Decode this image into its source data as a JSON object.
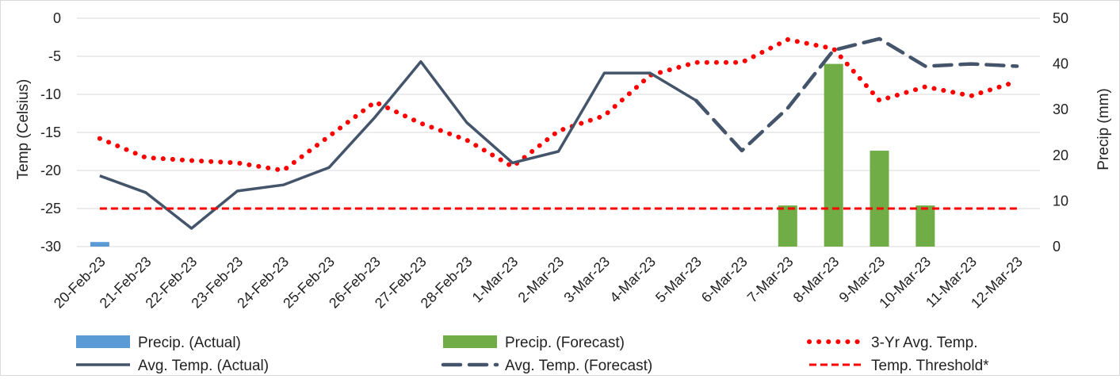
{
  "chart_data": {
    "type": "bar",
    "categories": [
      "20-Feb-23",
      "21-Feb-23",
      "22-Feb-23",
      "23-Feb-23",
      "24-Feb-23",
      "25-Feb-23",
      "26-Feb-23",
      "27-Feb-23",
      "28-Feb-23",
      "1-Mar-23",
      "2-Mar-23",
      "3-Mar-23",
      "4-Mar-23",
      "5-Mar-23",
      "6-Mar-23",
      "7-Mar-23",
      "8-Mar-23",
      "9-Mar-23",
      "10-Mar-23",
      "11-Mar-23",
      "12-Mar-23"
    ],
    "ylabel": "Temp  (Celsius)",
    "y2label": "Precip (mm)",
    "ylim": [
      -30,
      0
    ],
    "y2lim": [
      0,
      50
    ],
    "yticks": [
      "0",
      "-5",
      "-10",
      "-15",
      "-20",
      "-25",
      "-30"
    ],
    "y2ticks": [
      "50",
      "40",
      "30",
      "20",
      "10",
      "0"
    ],
    "grid": true,
    "legend_position": "bottom",
    "series": [
      {
        "name": "Precip. (Actual)",
        "kind": "bar",
        "axis": "right",
        "color": "#5b9bd5",
        "values": [
          1,
          null,
          null,
          null,
          null,
          null,
          null,
          null,
          null,
          null,
          null,
          null,
          null,
          null,
          null,
          null,
          null,
          null,
          null,
          null,
          null
        ]
      },
      {
        "name": "Precip. (Forecast)",
        "kind": "bar",
        "axis": "right",
        "color": "#70ad47",
        "values": [
          null,
          null,
          null,
          null,
          null,
          null,
          null,
          null,
          null,
          null,
          null,
          null,
          null,
          null,
          null,
          9,
          40,
          21,
          9,
          null,
          null
        ]
      },
      {
        "name": "3-Yr Avg. Temp.",
        "kind": "line",
        "style": "dotted",
        "axis": "left",
        "color": "#ff0000",
        "values": [
          -15.8,
          -18.3,
          -18.7,
          -19.0,
          -20.0,
          -15.5,
          -11.0,
          -13.8,
          -16.0,
          -19.5,
          -14.8,
          -12.8,
          -7.5,
          -5.8,
          -5.8,
          -2.8,
          -4.0,
          -10.8,
          -9.0,
          -10.2,
          -8.3
        ]
      },
      {
        "name": "Avg. Temp. (Actual)",
        "kind": "line",
        "style": "solid",
        "axis": "left",
        "color": "#44546a",
        "values": [
          -20.7,
          -22.9,
          -27.6,
          -22.7,
          -21.9,
          -19.6,
          -13.0,
          -5.7,
          -13.7,
          -19.0,
          -17.5,
          -7.2,
          -7.2,
          -10.8,
          null,
          null,
          null,
          null,
          null,
          null,
          null
        ]
      },
      {
        "name": "Avg. Temp. (Forecast)",
        "kind": "line",
        "style": "dashed",
        "axis": "left",
        "color": "#44546a",
        "values": [
          null,
          null,
          null,
          null,
          null,
          null,
          null,
          null,
          null,
          null,
          null,
          null,
          null,
          -10.8,
          -17.4,
          -11.8,
          -4.2,
          -2.7,
          -6.3,
          -6.0,
          -6.3
        ]
      },
      {
        "name": "Temp. Threshold*",
        "kind": "line",
        "style": "dashed",
        "axis": "left",
        "color": "#ff0000",
        "values": [
          -25,
          -25,
          -25,
          -25,
          -25,
          -25,
          -25,
          -25,
          -25,
          -25,
          -25,
          -25,
          -25,
          -25,
          -25,
          -25,
          -25,
          -25,
          -25,
          -25,
          -25
        ]
      }
    ]
  }
}
